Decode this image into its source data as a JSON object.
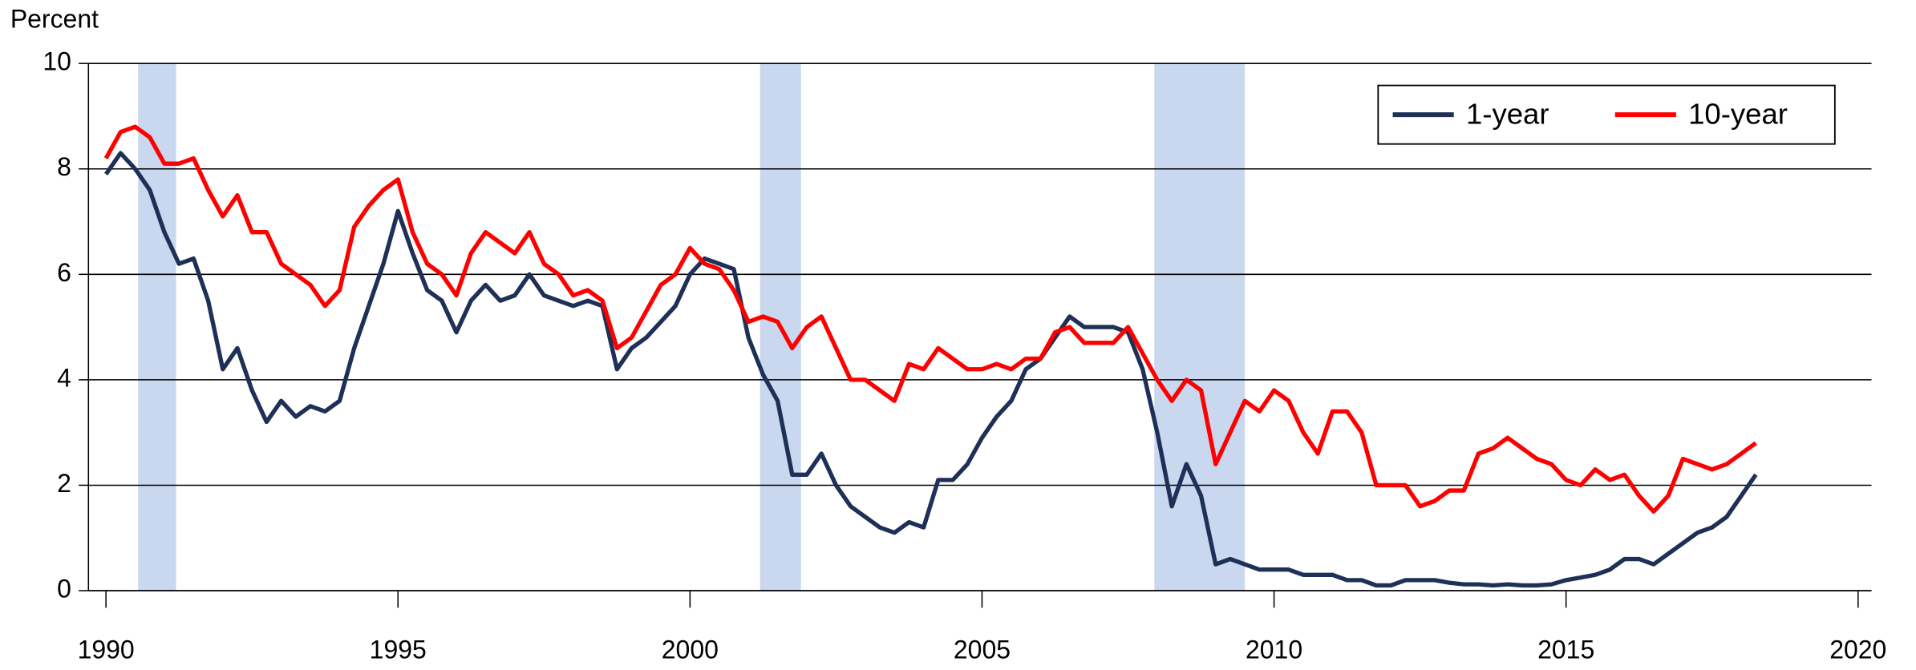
{
  "chart_data": {
    "type": "line",
    "y_label": "Percent",
    "x": [
      1990,
      1990.25,
      1990.5,
      1990.75,
      1991,
      1991.25,
      1991.5,
      1991.75,
      1992,
      1992.25,
      1992.5,
      1992.75,
      1993,
      1993.25,
      1993.5,
      1993.75,
      1994,
      1994.25,
      1994.5,
      1994.75,
      1995,
      1995.25,
      1995.5,
      1995.75,
      1996,
      1996.25,
      1996.5,
      1996.75,
      1997,
      1997.25,
      1997.5,
      1997.75,
      1998,
      1998.25,
      1998.5,
      1998.75,
      1999,
      1999.25,
      1999.5,
      1999.75,
      2000,
      2000.25,
      2000.5,
      2000.75,
      2001,
      2001.25,
      2001.5,
      2001.75,
      2002,
      2002.25,
      2002.5,
      2002.75,
      2003,
      2003.25,
      2003.5,
      2003.75,
      2004,
      2004.25,
      2004.5,
      2004.75,
      2005,
      2005.25,
      2005.5,
      2005.75,
      2006,
      2006.25,
      2006.5,
      2006.75,
      2007,
      2007.25,
      2007.5,
      2007.75,
      2008,
      2008.25,
      2008.5,
      2008.75,
      2009,
      2009.25,
      2009.5,
      2009.75,
      2010,
      2010.25,
      2010.5,
      2010.75,
      2011,
      2011.25,
      2011.5,
      2011.75,
      2012,
      2012.25,
      2012.5,
      2012.75,
      2013,
      2013.25,
      2013.5,
      2013.75,
      2014,
      2014.25,
      2014.5,
      2014.75,
      2015,
      2015.25,
      2015.5,
      2015.75,
      2016,
      2016.25,
      2016.5,
      2016.75,
      2017,
      2017.25,
      2017.5,
      2017.75,
      2018,
      2018.25
    ],
    "series": [
      {
        "name": "1-year",
        "color": "#1f3057",
        "values": [
          7.9,
          8.3,
          8.0,
          7.6,
          6.8,
          6.2,
          6.3,
          5.5,
          4.2,
          4.6,
          3.8,
          3.2,
          3.6,
          3.3,
          3.5,
          3.4,
          3.6,
          4.6,
          5.4,
          6.2,
          7.2,
          6.4,
          5.7,
          5.5,
          4.9,
          5.5,
          5.8,
          5.5,
          5.6,
          6.0,
          5.6,
          5.5,
          5.4,
          5.5,
          5.4,
          4.2,
          4.6,
          4.8,
          5.1,
          5.4,
          6.0,
          6.3,
          6.2,
          6.1,
          4.8,
          4.1,
          3.6,
          2.2,
          2.2,
          2.6,
          2.0,
          1.6,
          1.4,
          1.2,
          1.1,
          1.3,
          1.2,
          2.1,
          2.1,
          2.4,
          2.9,
          3.3,
          3.6,
          4.2,
          4.4,
          4.8,
          5.2,
          5.0,
          5.0,
          5.0,
          4.9,
          4.2,
          3.0,
          1.6,
          2.4,
          1.8,
          0.5,
          0.6,
          0.5,
          0.4,
          0.4,
          0.4,
          0.3,
          0.3,
          0.3,
          0.2,
          0.2,
          0.1,
          0.1,
          0.2,
          0.2,
          0.2,
          0.15,
          0.12,
          0.12,
          0.1,
          0.12,
          0.1,
          0.1,
          0.12,
          0.2,
          0.25,
          0.3,
          0.4,
          0.6,
          0.6,
          0.5,
          0.7,
          0.9,
          1.1,
          1.2,
          1.4,
          1.8,
          2.2
        ]
      },
      {
        "name": "10-year",
        "color": "#ff0000",
        "values": [
          8.2,
          8.7,
          8.8,
          8.6,
          8.1,
          8.1,
          8.2,
          7.6,
          7.1,
          7.5,
          6.8,
          6.8,
          6.2,
          6.0,
          5.8,
          5.4,
          5.7,
          6.9,
          7.3,
          7.6,
          7.8,
          6.8,
          6.2,
          6.0,
          5.6,
          6.4,
          6.8,
          6.6,
          6.4,
          6.8,
          6.2,
          6.0,
          5.6,
          5.7,
          5.5,
          4.6,
          4.8,
          5.3,
          5.8,
          6.0,
          6.5,
          6.2,
          6.1,
          5.7,
          5.1,
          5.2,
          5.1,
          4.6,
          5.0,
          5.2,
          4.6,
          4.0,
          4.0,
          3.8,
          3.6,
          4.3,
          4.2,
          4.6,
          4.4,
          4.2,
          4.2,
          4.3,
          4.2,
          4.4,
          4.4,
          4.9,
          5.0,
          4.7,
          4.7,
          4.7,
          5.0,
          4.5,
          4.0,
          3.6,
          4.0,
          3.8,
          2.4,
          3.0,
          3.6,
          3.4,
          3.8,
          3.6,
          3.0,
          2.6,
          3.4,
          3.4,
          3.0,
          2.0,
          2.0,
          2.0,
          1.6,
          1.7,
          1.9,
          1.9,
          2.6,
          2.7,
          2.9,
          2.7,
          2.5,
          2.4,
          2.1,
          2.0,
          2.3,
          2.1,
          2.2,
          1.8,
          1.5,
          1.8,
          2.5,
          2.4,
          2.3,
          2.4,
          2.6,
          2.8
        ]
      }
    ],
    "shaded_periods": [
      [
        1990.55,
        1991.2
      ],
      [
        2001.2,
        2001.9
      ],
      [
        2007.95,
        2009.5
      ]
    ],
    "shade_color": "#c9d7ef",
    "xlim": [
      1989.7,
      2020.23
    ],
    "xticks": [
      1990,
      1995,
      2000,
      2005,
      2010,
      2015,
      2020
    ],
    "ylim": [
      0,
      10
    ],
    "yticks": [
      0,
      2,
      4,
      6,
      8,
      10
    ],
    "grid": true,
    "legend": "upper right"
  }
}
